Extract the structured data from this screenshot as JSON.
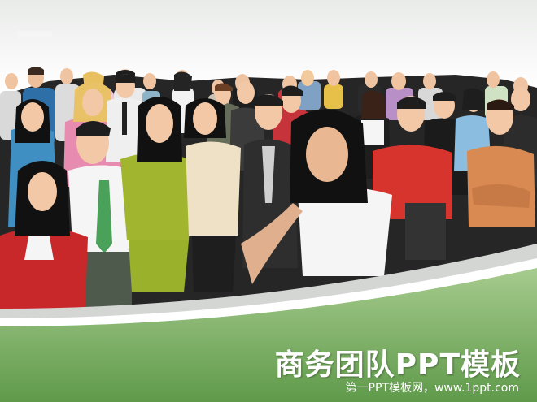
{
  "slide": {
    "title": "商务团队PPT模板",
    "subtitle": "第一PPT模板网，www.1ppt.com"
  },
  "colors": {
    "band_green_dark": "#5f9a4a",
    "band_green_light": "#a6cb8e",
    "band_grey": "#d4d6d4",
    "crowd_bg": "#1e1e1e"
  },
  "icons": [
    "site-logo-icon"
  ]
}
